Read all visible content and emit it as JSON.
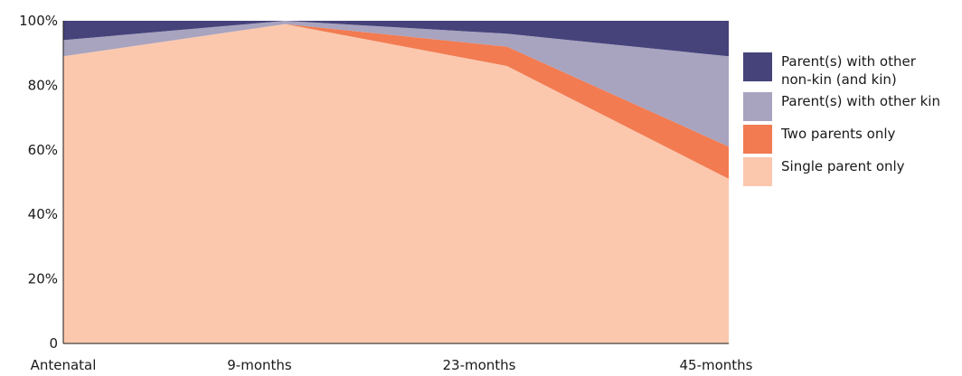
{
  "chart_data": {
    "type": "area",
    "stacked": true,
    "categories": [
      "Antenatal",
      "9-months",
      "23-months",
      "45-months"
    ],
    "series": [
      {
        "name": "Single parent only",
        "color": "#FBC8AE",
        "values": [
          89,
          99,
          86,
          51
        ]
      },
      {
        "name": "Two parents only",
        "color": "#F27B51",
        "values": [
          0,
          0,
          6,
          10
        ]
      },
      {
        "name": "Parent(s) with other kin",
        "color": "#A8A3BF",
        "values": [
          5,
          1,
          4,
          28
        ]
      },
      {
        "name": "Parent(s) with other non-kin (and kin)",
        "color": "#45437A",
        "values": [
          6,
          0,
          4,
          11
        ]
      }
    ],
    "ylim": [
      0,
      100
    ],
    "ytick_labels": [
      "0",
      "20%",
      "40%",
      "60%",
      "80%",
      "100%"
    ],
    "grid": false,
    "legend_position": "right"
  },
  "legend": [
    {
      "label": "Parent(s) with other\nnon-kin (and kin)",
      "color": "#45437A",
      "icon": "square-swatch"
    },
    {
      "label": "Parent(s) with other kin",
      "color": "#A8A3BF",
      "icon": "square-swatch"
    },
    {
      "label": "Two parents only",
      "color": "#F27B51",
      "icon": "square-swatch"
    },
    {
      "label": "Single parent only",
      "color": "#FBC8AE",
      "icon": "square-swatch"
    }
  ]
}
